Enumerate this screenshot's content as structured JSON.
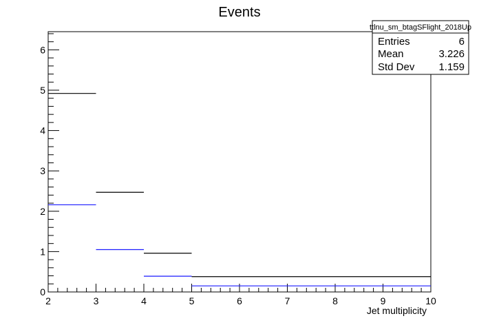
{
  "chart_data": {
    "type": "histogram",
    "title": "Events",
    "xlabel": "Jet multiplicity",
    "ylabel": "",
    "xlim": [
      2,
      10
    ],
    "ylim": [
      0,
      6.45
    ],
    "x_ticks": [
      2,
      3,
      4,
      5,
      6,
      7,
      8,
      9,
      10
    ],
    "y_ticks": [
      0,
      1,
      2,
      3,
      4,
      5,
      6
    ],
    "bins": [
      [
        2,
        3
      ],
      [
        3,
        4
      ],
      [
        4,
        5
      ],
      [
        5,
        10
      ]
    ],
    "series": [
      {
        "color": "#000000",
        "values": [
          4.92,
          2.47,
          0.96,
          0.38
        ]
      },
      {
        "color": "#1a1aff",
        "values": [
          2.16,
          1.05,
          0.39,
          0.15
        ]
      }
    ],
    "stats_box": {
      "name": "ttlnu_sm_btagSFlight_2018Up",
      "rows": [
        {
          "label": "Entries",
          "value": "6"
        },
        {
          "label": "Mean",
          "value": "3.226"
        },
        {
          "label": "Std Dev",
          "value": "1.159"
        }
      ]
    },
    "grid": false
  }
}
